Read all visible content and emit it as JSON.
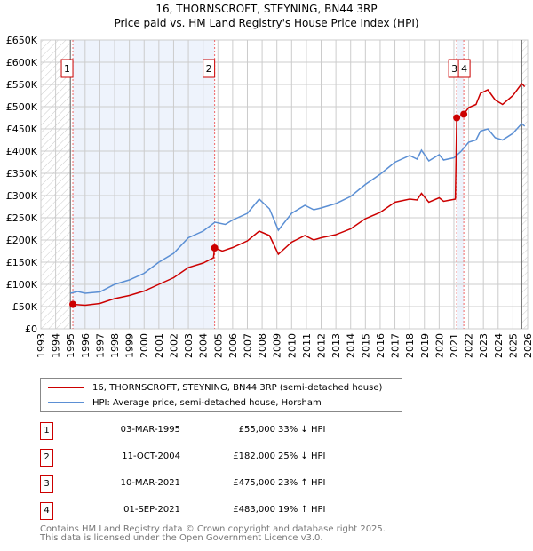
{
  "chart_data": {
    "type": "line",
    "title": "16, THORNSCROFT, STEYNING, BN44 3RP",
    "subtitle": "Price paid vs. HM Land Registry's House Price Index (HPI)",
    "xlim": [
      1993,
      2026
    ],
    "ylim": [
      0,
      650000
    ],
    "y_ticks": [
      0,
      50000,
      100000,
      150000,
      200000,
      250000,
      300000,
      350000,
      400000,
      450000,
      500000,
      550000,
      600000,
      650000
    ],
    "y_tick_labels": [
      "£0",
      "£50K",
      "£100K",
      "£150K",
      "£200K",
      "£250K",
      "£300K",
      "£350K",
      "£400K",
      "£450K",
      "£500K",
      "£550K",
      "£600K",
      "£650K"
    ],
    "x_ticks": [
      "1993",
      "1994",
      "1995",
      "1996",
      "1997",
      "1998",
      "1999",
      "2000",
      "2001",
      "2002",
      "2003",
      "2004",
      "2005",
      "2006",
      "2007",
      "2008",
      "2009",
      "2010",
      "2011",
      "2012",
      "2013",
      "2014",
      "2015",
      "2016",
      "2017",
      "2018",
      "2019",
      "2020",
      "2021",
      "2022",
      "2023",
      "2024",
      "2025",
      "2026"
    ],
    "grid": true,
    "series": [
      {
        "name": "16, THORNSCROFT, STEYNING, BN44 3RP (semi-detached house)",
        "color": "#cc0000",
        "x": [
          1995.17,
          1996,
          1997,
          1998,
          1999,
          2000,
          2001,
          2002,
          2003,
          2004,
          2004.7,
          2004.78,
          2005.3,
          2006,
          2007,
          2007.8,
          2008.5,
          2009.1,
          2010,
          2010.9,
          2011.5,
          2012,
          2013,
          2014,
          2015,
          2016,
          2017,
          2018,
          2018.5,
          2018.8,
          2019.3,
          2020,
          2020.3,
          2021.1,
          2021.19,
          2021.67,
          2022,
          2022.5,
          2022.8,
          2023.3,
          2023.8,
          2024.3,
          2025,
          2025.6,
          2025.8
        ],
        "y": [
          55000,
          53000,
          57000,
          68000,
          75000,
          85000,
          100000,
          115000,
          138000,
          148000,
          160000,
          182000,
          175000,
          183000,
          198000,
          220000,
          210000,
          168000,
          195000,
          210000,
          200000,
          205000,
          212000,
          225000,
          248000,
          262000,
          285000,
          292000,
          290000,
          305000,
          285000,
          295000,
          287000,
          292000,
          475000,
          483000,
          498000,
          505000,
          530000,
          538000,
          515000,
          505000,
          525000,
          552000,
          545000
        ]
      },
      {
        "name": "HPI: Average price, semi-detached house, Horsham",
        "color": "#5b8fd4",
        "x": [
          1995,
          1995.5,
          1996,
          1997,
          1998,
          1999,
          2000,
          2001,
          2002,
          2003,
          2004,
          2004.8,
          2005.5,
          2006,
          2007,
          2007.8,
          2008.5,
          2009.1,
          2010,
          2010.9,
          2011.5,
          2012,
          2013,
          2014,
          2015,
          2016,
          2017,
          2018,
          2018.5,
          2018.8,
          2019.3,
          2020,
          2020.3,
          2021,
          2021.5,
          2022,
          2022.5,
          2022.8,
          2023.3,
          2023.8,
          2024.3,
          2025,
          2025.6,
          2025.8
        ],
        "y": [
          80000,
          84000,
          80000,
          83000,
          100000,
          110000,
          125000,
          150000,
          170000,
          205000,
          220000,
          240000,
          235000,
          245000,
          260000,
          292000,
          270000,
          222000,
          260000,
          278000,
          268000,
          272000,
          282000,
          298000,
          325000,
          348000,
          375000,
          390000,
          382000,
          402000,
          378000,
          392000,
          380000,
          385000,
          400000,
          420000,
          425000,
          445000,
          450000,
          430000,
          425000,
          440000,
          462000,
          456000
        ]
      }
    ],
    "sales": [
      {
        "label": "1",
        "x": 1995.17,
        "y": 55000,
        "date": "03-MAR-1995",
        "price": "£55,000",
        "hpi": "33% ↓ HPI"
      },
      {
        "label": "2",
        "x": 2004.78,
        "y": 182000,
        "date": "11-OCT-2004",
        "price": "£182,000",
        "hpi": "25% ↓ HPI"
      },
      {
        "label": "3",
        "x": 2021.19,
        "y": 475000,
        "date": "10-MAR-2021",
        "price": "£475,000",
        "hpi": "23% ↑ HPI"
      },
      {
        "label": "4",
        "x": 2021.67,
        "y": 483000,
        "date": "01-SEP-2021",
        "price": "£483,000",
        "hpi": "19% ↑ HPI"
      }
    ],
    "shaded_spans": [
      [
        1995.17,
        2004.78
      ],
      [
        2021.19,
        2021.67
      ]
    ],
    "data_start": 1995.0,
    "data_end": 2025.6,
    "legend_placement": "below"
  },
  "footer": {
    "line1": "Contains HM Land Registry data © Crown copyright and database right 2025.",
    "line2": "This data is licensed under the Open Government Licence v3.0."
  }
}
